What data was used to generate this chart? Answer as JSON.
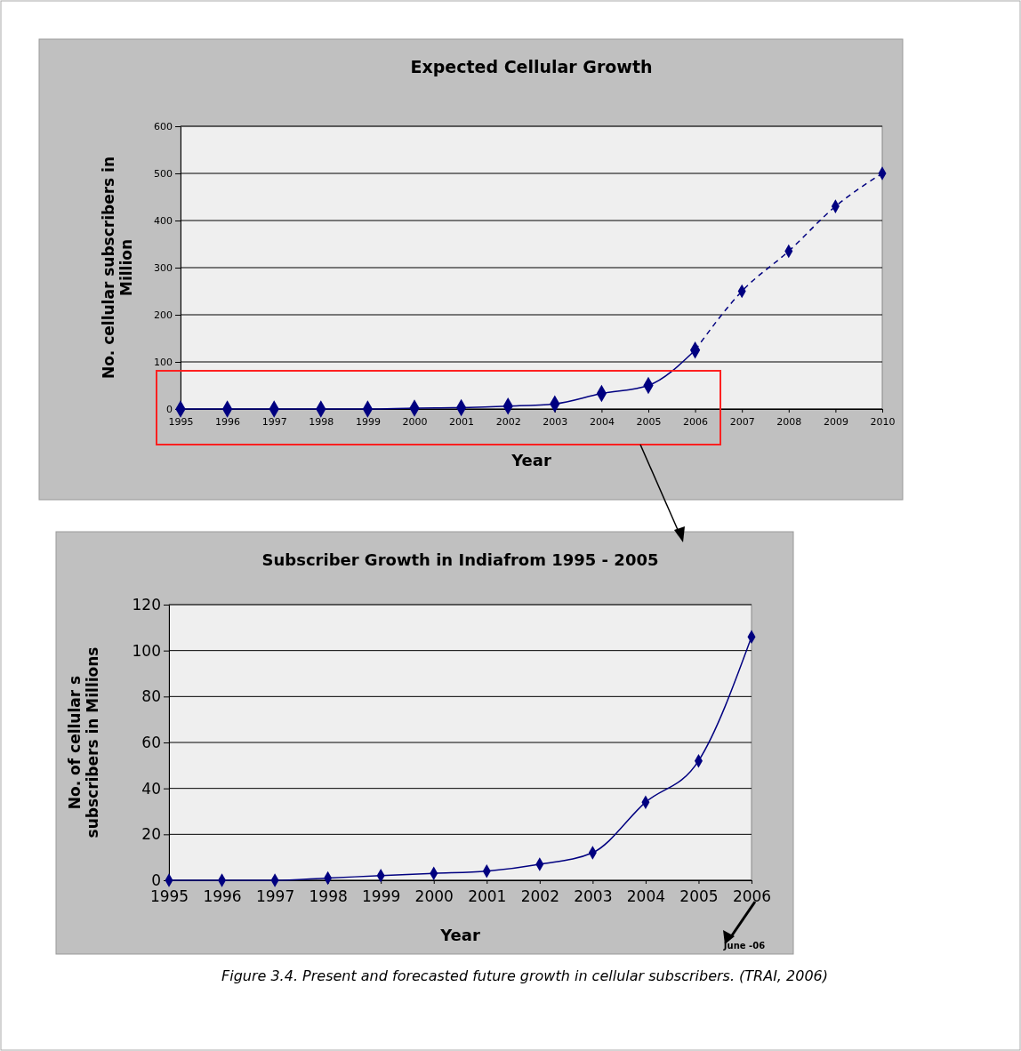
{
  "chart_data": [
    {
      "type": "line",
      "title": "Expected Cellular Growth",
      "xlabel": "Year",
      "ylabel": "No. cellular subscribers in Million",
      "categories": [
        "1995",
        "1996",
        "1997",
        "1998",
        "1999",
        "2000",
        "2001",
        "2002",
        "2003",
        "2004",
        "2005",
        "2006",
        "2007",
        "2008",
        "2009",
        "2010"
      ],
      "series": [
        {
          "color": "#000080",
          "line_style": "solid",
          "values": [
            0,
            0,
            0,
            0,
            0,
            2,
            3,
            6,
            11,
            33,
            50,
            125,
            null,
            null,
            null,
            null
          ]
        },
        {
          "color": "#000080",
          "line_style": "dashed",
          "values": [
            null,
            null,
            null,
            null,
            null,
            null,
            null,
            null,
            null,
            null,
            null,
            125,
            250,
            335,
            430,
            500
          ]
        }
      ],
      "ylim": [
        0,
        600
      ],
      "yticks": [
        0,
        100,
        200,
        300,
        400,
        500,
        600
      ],
      "grid": "y",
      "marker": "diamond"
    },
    {
      "type": "line",
      "title": "Subscriber Growth in Indiafrom 1995 - 2005",
      "xlabel": "Year",
      "ylabel": "No. of cellular s subscribers in Millions",
      "categories": [
        "1995",
        "1996",
        "1997",
        "1998",
        "1999",
        "2000",
        "2001",
        "2002",
        "2003",
        "2004",
        "2005",
        "2006"
      ],
      "series": [
        {
          "color": "#000080",
          "values": [
            0,
            0,
            0,
            1,
            2,
            3,
            4,
            7,
            12,
            34,
            52,
            106
          ]
        }
      ],
      "ylim": [
        0,
        120
      ],
      "yticks": [
        0,
        20,
        40,
        60,
        80,
        100,
        120
      ],
      "grid": "y",
      "marker": "diamond",
      "line_style": "solid",
      "annotations": [
        "June -06",
        "Figure 3.4. Present and forecasted future growth in cellular subscribers. (TRAI, 2006)"
      ]
    }
  ]
}
